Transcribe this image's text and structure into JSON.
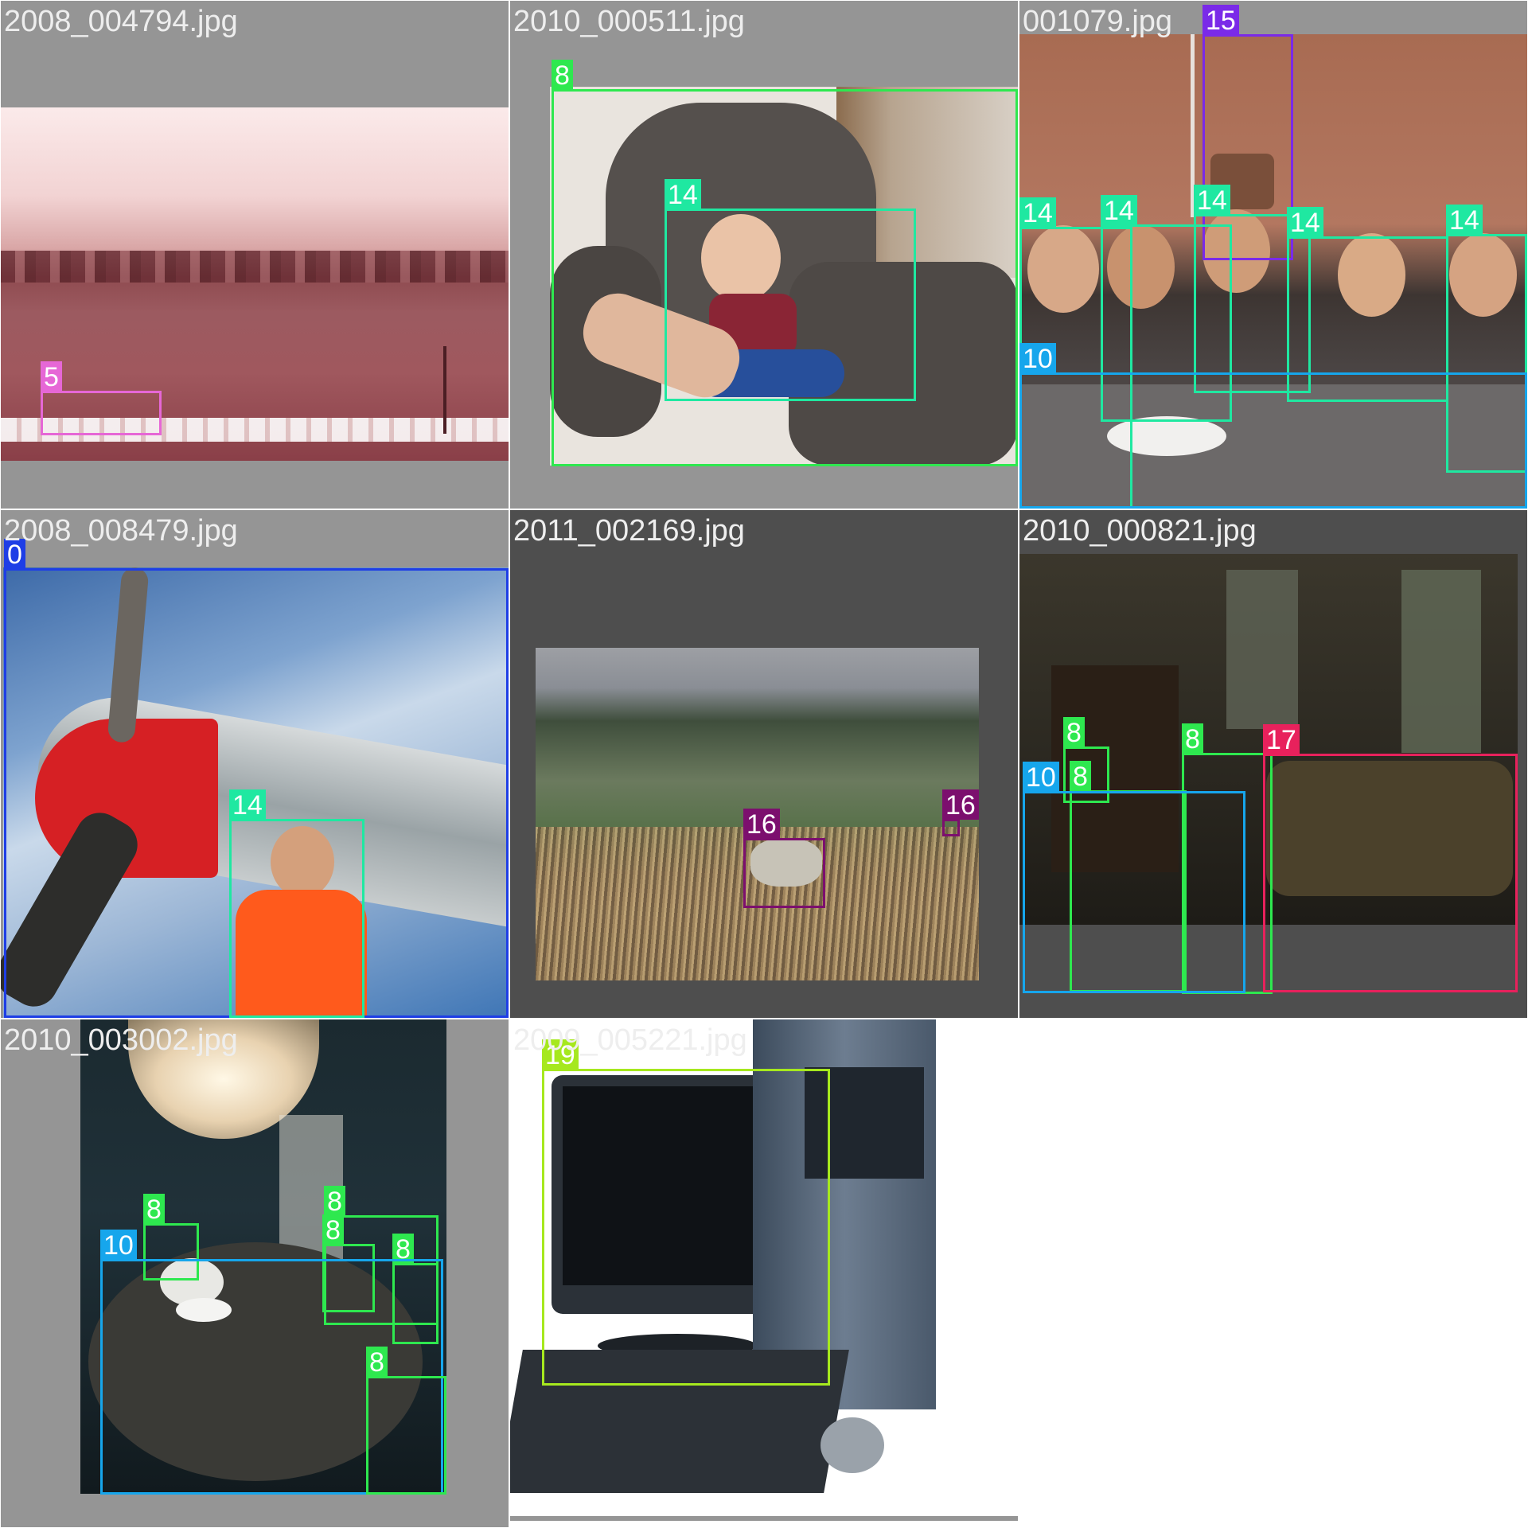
{
  "mosaic": {
    "tiles": [
      {
        "filename": "2008_004794.jpg",
        "pad_color": "#959595",
        "detections": [
          {
            "class_id": "5",
            "color": "#e667d6"
          }
        ]
      },
      {
        "filename": "2010_000511.jpg",
        "pad_color": "#959595",
        "detections": [
          {
            "class_id": "8",
            "color": "#2ee84f"
          },
          {
            "class_id": "14",
            "color": "#1fe8a1"
          }
        ]
      },
      {
        "filename": "001079.jpg",
        "pad_color": "#959595",
        "detections": [
          {
            "class_id": "15",
            "color": "#7a2ae8"
          },
          {
            "class_id": "14",
            "color": "#1fe8a1"
          },
          {
            "class_id": "14",
            "color": "#1fe8a1"
          },
          {
            "class_id": "14",
            "color": "#1fe8a1"
          },
          {
            "class_id": "14",
            "color": "#1fe8a1"
          },
          {
            "class_id": "14",
            "color": "#1fe8a1"
          },
          {
            "class_id": "10",
            "color": "#16a6ec"
          }
        ]
      },
      {
        "filename": "2008_008479.jpg",
        "pad_color": "#959595",
        "detections": [
          {
            "class_id": "0",
            "color": "#1e3ee6"
          },
          {
            "class_id": "14",
            "color": "#1fe8a1"
          }
        ]
      },
      {
        "filename": "2011_002169.jpg",
        "pad_color": "#4e4e4e",
        "detections": [
          {
            "class_id": "16",
            "color": "#7c0f6e"
          },
          {
            "class_id": "16",
            "color": "#7c0f6e"
          }
        ]
      },
      {
        "filename": "2010_000821.jpg",
        "pad_color": "#4e4e4e",
        "detections": [
          {
            "class_id": "8",
            "color": "#2ee84f"
          },
          {
            "class_id": "8",
            "color": "#2ee84f"
          },
          {
            "class_id": "8",
            "color": "#2ee84f"
          },
          {
            "class_id": "10",
            "color": "#16a6ec"
          },
          {
            "class_id": "17",
            "color": "#e8215c"
          }
        ]
      },
      {
        "filename": "2010_003002.jpg",
        "pad_color": "#959595",
        "detections": [
          {
            "class_id": "8",
            "color": "#2ee84f"
          },
          {
            "class_id": "8",
            "color": "#2ee84f"
          },
          {
            "class_id": "8",
            "color": "#2ee84f"
          },
          {
            "class_id": "8",
            "color": "#2ee84f"
          },
          {
            "class_id": "10",
            "color": "#16a6ec"
          },
          {
            "class_id": "8",
            "color": "#2ee84f"
          }
        ]
      },
      {
        "filename": "2009_005221.jpg",
        "pad_color": "#ffffff",
        "detections": [
          {
            "class_id": "19",
            "color": "#a6e81e"
          }
        ]
      }
    ]
  }
}
